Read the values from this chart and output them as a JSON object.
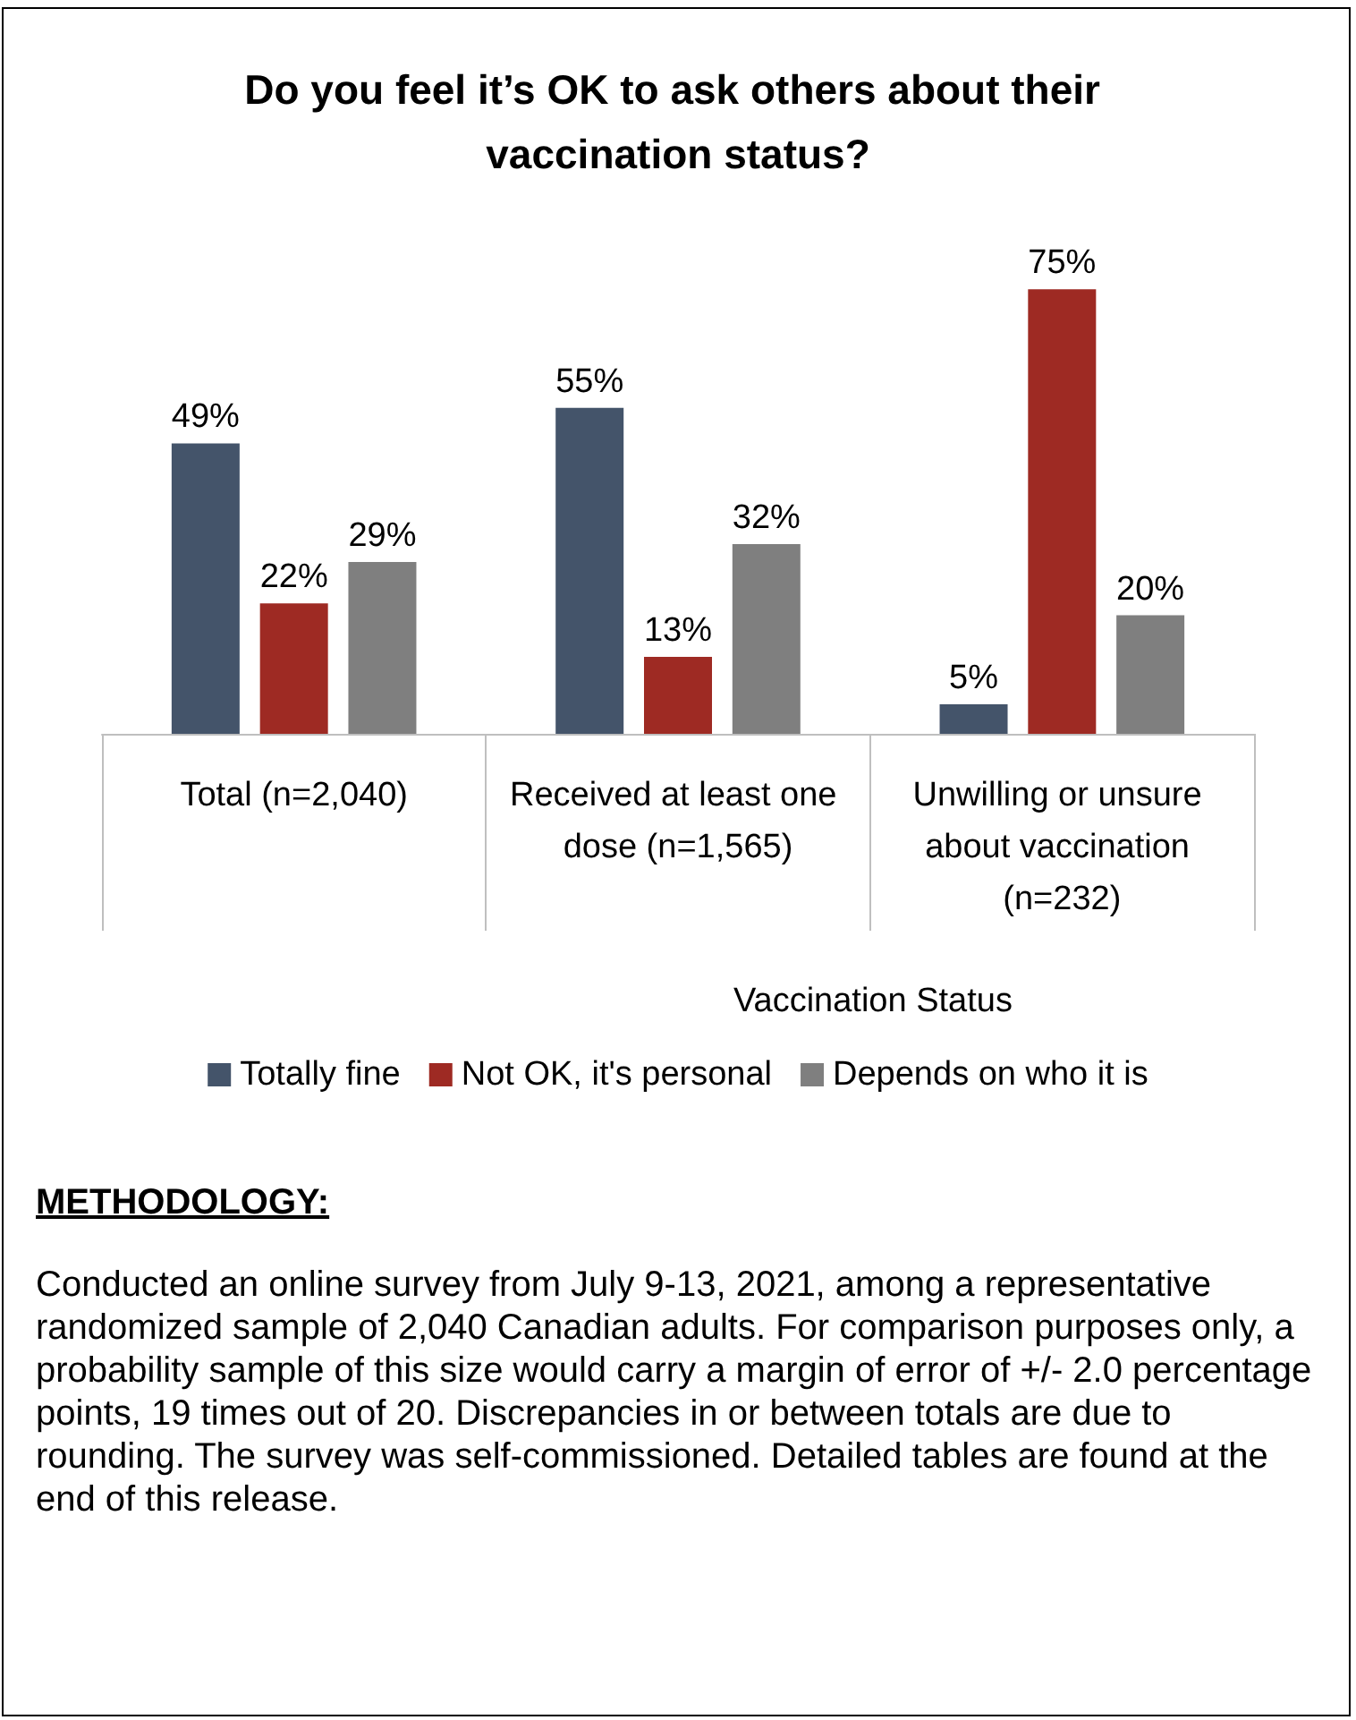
{
  "chart_data": {
    "type": "bar",
    "title": "Do you feel it’s OK to ask others about their vaccination status?",
    "categories": [
      "Total (n=2,040)",
      "Received at least one dose (n=1,565)",
      "Unwilling or unsure about vaccination (n=232)"
    ],
    "series": [
      {
        "name": "Totally fine",
        "color": "#44546a",
        "values": [
          49,
          55,
          5
        ],
        "value_labels": [
          "49%",
          "55%",
          "5%"
        ]
      },
      {
        "name": "Not OK, it's personal",
        "color": "#9e2a23",
        "values": [
          22,
          13,
          75
        ],
        "value_labels": [
          "22%",
          "13%",
          "75%"
        ]
      },
      {
        "name": "Depends on who it is",
        "color": "#7f7f7f",
        "values": [
          29,
          32,
          20
        ],
        "value_labels": [
          "29%",
          "32%",
          "20%"
        ]
      }
    ],
    "legend": "bottom",
    "annotations": [
      "Vaccination Status",
      "METHODOLOGY:",
      "Conducted an online survey from July 9-13, 2021, among a representative randomized sample of 2,040 Canadian adults. For comparison purposes only, a probability sample of this size would carry a margin of error of +/- 2.0 percentage points, 19 times out of 20. Discrepancies in or between totals are due to rounding. The survey was self-commissioned. Detailed tables are found at the end of this release."
    ]
  }
}
